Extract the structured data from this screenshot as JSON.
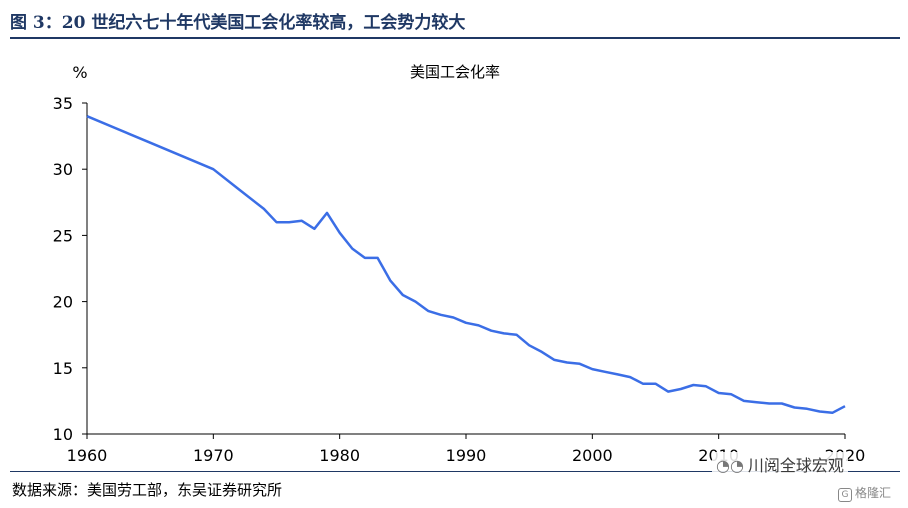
{
  "figure_title": "图 3：20 世纪六七十年代美国工会化率较高，工会势力较大",
  "source_note": "数据来源：美国劳工部，东吴证券研究所",
  "watermark": {
    "text": "川阅全球宏观",
    "sub": "格隆汇"
  },
  "colors": {
    "line": "#3b6ee6",
    "title": "#1f3864",
    "axis": "#000000"
  },
  "chart_data": {
    "type": "line",
    "title": "美国工会化率",
    "ylabel": "%",
    "xlabel": "",
    "xlim": [
      1960,
      2020
    ],
    "ylim": [
      10,
      35
    ],
    "x_ticks": [
      "1960",
      "1970",
      "1980",
      "1990",
      "2000",
      "2010",
      "2020"
    ],
    "y_ticks": [
      "10",
      "15",
      "20",
      "25",
      "30",
      "35"
    ],
    "legend": "none",
    "grid": false,
    "series": [
      {
        "x": [
          1960,
          1965,
          1970,
          1972,
          1974,
          1975,
          1976,
          1977,
          1978,
          1979,
          1980,
          1981,
          1982,
          1983,
          1984,
          1985,
          1986,
          1987,
          1988,
          1989,
          1990,
          1991,
          1992,
          1993,
          1994,
          1995,
          1996,
          1997,
          1998,
          1999,
          2000,
          2001,
          2002,
          2003,
          2004,
          2005,
          2006,
          2007,
          2008,
          2009,
          2010,
          2011,
          2012,
          2013,
          2014,
          2015,
          2016,
          2017,
          2018,
          2019,
          2020
        ],
        "y": [
          34.0,
          32.0,
          30.0,
          28.5,
          27.0,
          26.0,
          26.0,
          26.1,
          25.5,
          26.7,
          25.2,
          24.0,
          23.3,
          23.3,
          21.6,
          20.5,
          20.0,
          19.3,
          19.0,
          18.8,
          18.4,
          18.2,
          17.8,
          17.6,
          17.5,
          16.7,
          16.2,
          15.6,
          15.4,
          15.3,
          14.9,
          14.7,
          14.5,
          14.3,
          13.8,
          13.8,
          13.2,
          13.4,
          13.7,
          13.6,
          13.1,
          13.0,
          12.5,
          12.4,
          12.3,
          12.3,
          12.0,
          11.9,
          11.7,
          11.6,
          12.1
        ]
      }
    ]
  }
}
